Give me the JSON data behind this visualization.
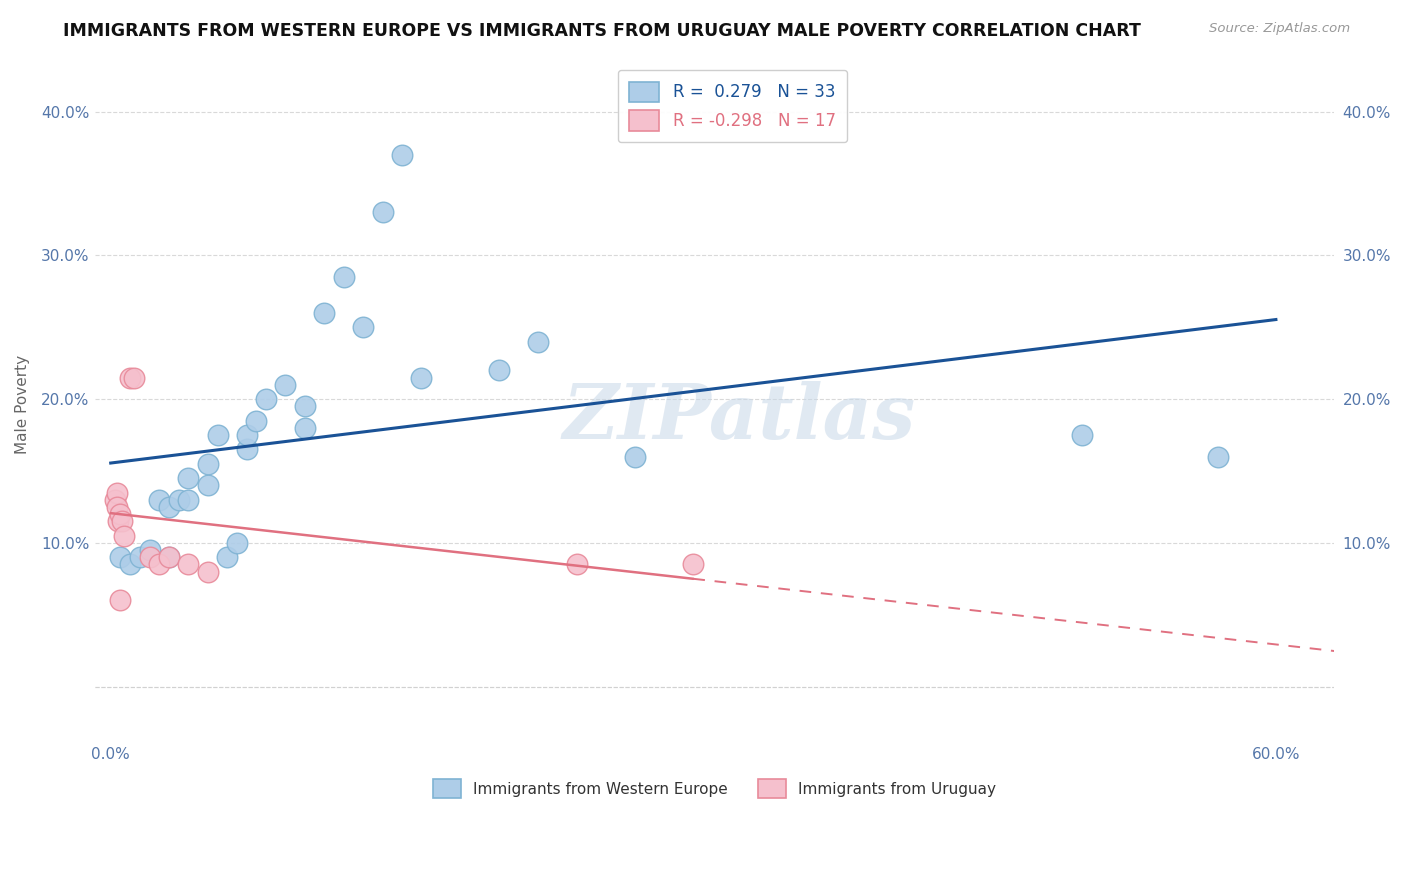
{
  "title": "IMMIGRANTS FROM WESTERN EUROPE VS IMMIGRANTS FROM URUGUAY MALE POVERTY CORRELATION CHART",
  "source": "Source: ZipAtlas.com",
  "ylabel": "Male Poverty",
  "xlim": [
    -0.008,
    0.63
  ],
  "ylim": [
    -0.038,
    0.43
  ],
  "legend1_label": "R =  0.279   N = 33",
  "legend2_label": "R = -0.298   N = 17",
  "legend_bottom1": "Immigrants from Western Europe",
  "legend_bottom2": "Immigrants from Uruguay",
  "blue_scatter_color": "#aecde8",
  "blue_edge_color": "#7fb3d3",
  "pink_scatter_color": "#f5c0cd",
  "pink_edge_color": "#e88a9a",
  "line_blue": "#1a5296",
  "line_pink": "#e07080",
  "watermark": "ZIPatlas",
  "blue_x": [
    0.005,
    0.01,
    0.015,
    0.02,
    0.025,
    0.03,
    0.03,
    0.035,
    0.04,
    0.04,
    0.05,
    0.05,
    0.055,
    0.06,
    0.065,
    0.07,
    0.07,
    0.075,
    0.08,
    0.09,
    0.1,
    0.1,
    0.11,
    0.12,
    0.13,
    0.14,
    0.15,
    0.16,
    0.2,
    0.22,
    0.27,
    0.5,
    0.57
  ],
  "blue_y": [
    0.09,
    0.085,
    0.09,
    0.095,
    0.13,
    0.09,
    0.125,
    0.13,
    0.13,
    0.145,
    0.14,
    0.155,
    0.175,
    0.09,
    0.1,
    0.165,
    0.175,
    0.185,
    0.2,
    0.21,
    0.18,
    0.195,
    0.26,
    0.285,
    0.25,
    0.33,
    0.37,
    0.215,
    0.22,
    0.24,
    0.16,
    0.175,
    0.16
  ],
  "pink_x": [
    0.002,
    0.003,
    0.003,
    0.004,
    0.005,
    0.005,
    0.006,
    0.007,
    0.01,
    0.012,
    0.02,
    0.025,
    0.03,
    0.04,
    0.05,
    0.24,
    0.3
  ],
  "pink_y": [
    0.13,
    0.135,
    0.125,
    0.115,
    0.12,
    0.06,
    0.115,
    0.105,
    0.215,
    0.215,
    0.09,
    0.085,
    0.09,
    0.085,
    0.08,
    0.085,
    0.085
  ],
  "background_color": "#ffffff",
  "grid_color": "#d0d0d0",
  "legend_blue_text": "#1a5296",
  "legend_pink_text": "#e07080",
  "axis_text_color": "#5577aa",
  "title_color": "#111111",
  "source_color": "#999999",
  "ylabel_color": "#666666"
}
